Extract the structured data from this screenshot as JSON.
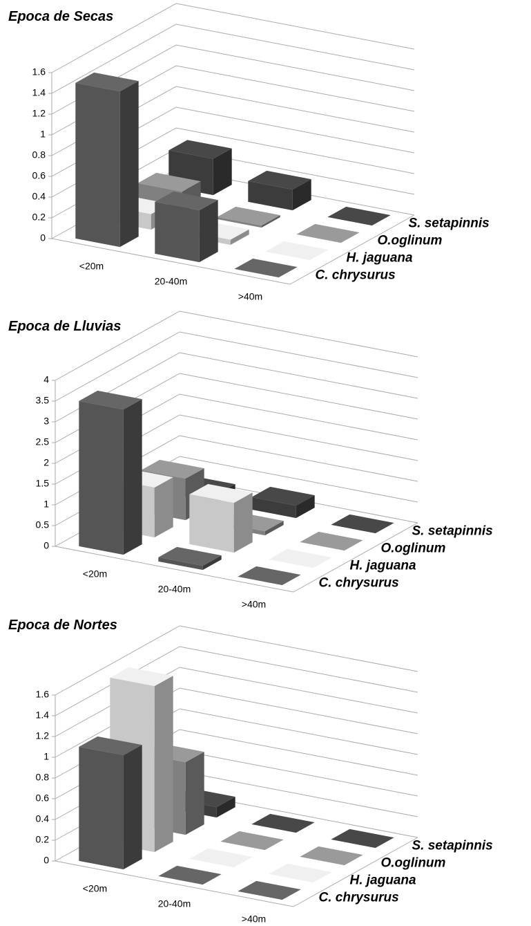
{
  "chart_data": [
    {
      "type": "bar",
      "title": "Epoca de Secas",
      "categories": [
        "<20m",
        "20-40m",
        ">40m"
      ],
      "series": [
        {
          "name": "C. chrysurus",
          "color": "#555555",
          "values": [
            1.5,
            0.5,
            0
          ]
        },
        {
          "name": "H. jaguana",
          "color": "#c8c8c8",
          "values": [
            0.15,
            0.05,
            0
          ]
        },
        {
          "name": "O.oglinum",
          "color": "#808080",
          "values": [
            0.2,
            0.02,
            0
          ]
        },
        {
          "name": "S. setapinnis",
          "color": "#3c3c3c",
          "values": [
            0.35,
            0.2,
            0
          ]
        }
      ],
      "ylim": [
        0,
        1.6
      ],
      "yticks": [
        0,
        0.2,
        0.4,
        0.6,
        0.8,
        1,
        1.2,
        1.4,
        1.6
      ],
      "grid": true
    },
    {
      "type": "bar",
      "title": "Epoca de Lluvias",
      "categories": [
        "<20m",
        "20-40m",
        ">40m"
      ],
      "series": [
        {
          "name": "C. chrysurus",
          "color": "#555555",
          "values": [
            3.5,
            0.1,
            0
          ]
        },
        {
          "name": "H. jaguana",
          "color": "#c8c8c8",
          "values": [
            1.2,
            1.2,
            0
          ]
        },
        {
          "name": "O.oglinum",
          "color": "#808080",
          "values": [
            1.0,
            0.1,
            0
          ]
        },
        {
          "name": "S. setapinnis",
          "color": "#3c3c3c",
          "values": [
            0.2,
            0.3,
            0
          ]
        }
      ],
      "ylim": [
        0,
        4
      ],
      "yticks": [
        0,
        0.5,
        1,
        1.5,
        2,
        2.5,
        3,
        3.5,
        4
      ],
      "grid": true
    },
    {
      "type": "bar",
      "title": "Epoca de Nortes",
      "categories": [
        "<20m",
        "20-40m",
        ">40m"
      ],
      "series": [
        {
          "name": "C. chrysurus",
          "color": "#555555",
          "values": [
            1.1,
            0,
            0
          ]
        },
        {
          "name": "H. jaguana",
          "color": "#c8c8c8",
          "values": [
            1.6,
            0,
            0
          ]
        },
        {
          "name": "O.oglinum",
          "color": "#808080",
          "values": [
            0.7,
            0,
            0
          ]
        },
        {
          "name": "S. setapinnis",
          "color": "#3c3c3c",
          "values": [
            0.1,
            0,
            0
          ]
        }
      ],
      "ylim": [
        0,
        1.6
      ],
      "yticks": [
        0,
        0.2,
        0.4,
        0.6,
        0.8,
        1,
        1.2,
        1.4,
        1.6
      ],
      "grid": true
    }
  ]
}
